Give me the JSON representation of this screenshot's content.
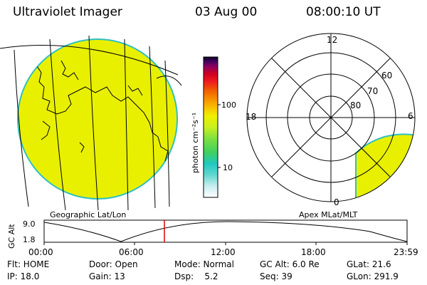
{
  "header": {
    "instrument": "Ultraviolet Imager",
    "date": "03 Aug 00",
    "time": "08:00:10 UT"
  },
  "geo_panel": {
    "label": "Geographic Lat/Lon",
    "fill_color": "#e8f000"
  },
  "colorbar": {
    "unit_label": "photon cm⁻²s⁻¹",
    "ticks": [
      "100",
      "10"
    ],
    "scale": "log",
    "colors": [
      "#ffffff",
      "#c8eef0",
      "#60d8d0",
      "#20c8c0",
      "#40d060",
      "#80e040",
      "#c8f020",
      "#f0f000",
      "#f8c000",
      "#f89000",
      "#f06000",
      "#f02020",
      "#d00020",
      "#900060",
      "#400060",
      "#100020"
    ]
  },
  "polar_panel": {
    "label": "Apex MLat/MLT",
    "mlt_labels": [
      "12",
      "18",
      "6",
      "0"
    ],
    "lat_labels": [
      "60",
      "70",
      "80"
    ],
    "fill_color": "#e8f000"
  },
  "altitude_strip": {
    "axis_label": "GC Alt",
    "ytick_top": "9.0",
    "ytick_bottom": "1.8",
    "xticks": [
      "00:00",
      "06:00",
      "12:00",
      "18:00",
      "23:59"
    ],
    "marker_color": "#e00000"
  },
  "status": {
    "flt": "Flt: HOME",
    "door": "Door: Open",
    "mode": "Mode: Normal",
    "gcalt": "GC Alt: 6.0 Re",
    "glat": "GLat:  21.6",
    "ip": "IP: 18.0",
    "gain": "Gain: 13",
    "dsp": "Dsp:    5.2",
    "seq": "Seq: 39",
    "glon": "GLon: 291.9"
  }
}
